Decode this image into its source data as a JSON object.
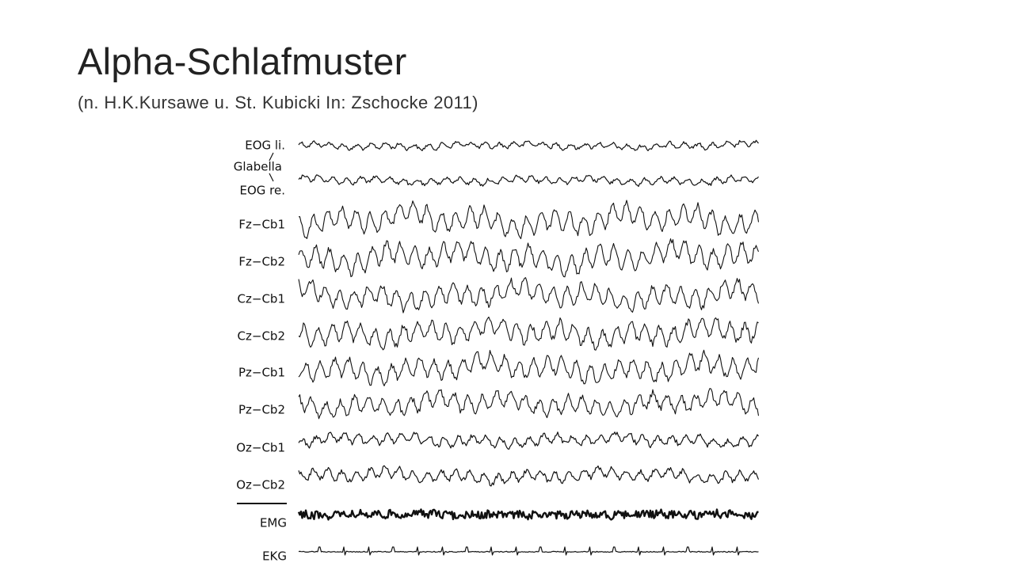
{
  "slide": {
    "title": "Alpha-Schlafmuster",
    "subtitle": "(n. H.K.Kursawe u. St. Kubicki  In: Zschocke 2011)",
    "figure": {
      "channel_labels": [
        "EOG li.",
        "Glabella",
        "EOG re.",
        "Fz−Cb1",
        "Fz−Cb2",
        "Cz−Cb1",
        "Cz−Cb2",
        "Pz−Cb1",
        "Pz−Cb2",
        "Oz−Cb1",
        "Oz−Cb2",
        "EMG",
        "EKG"
      ]
    }
  }
}
